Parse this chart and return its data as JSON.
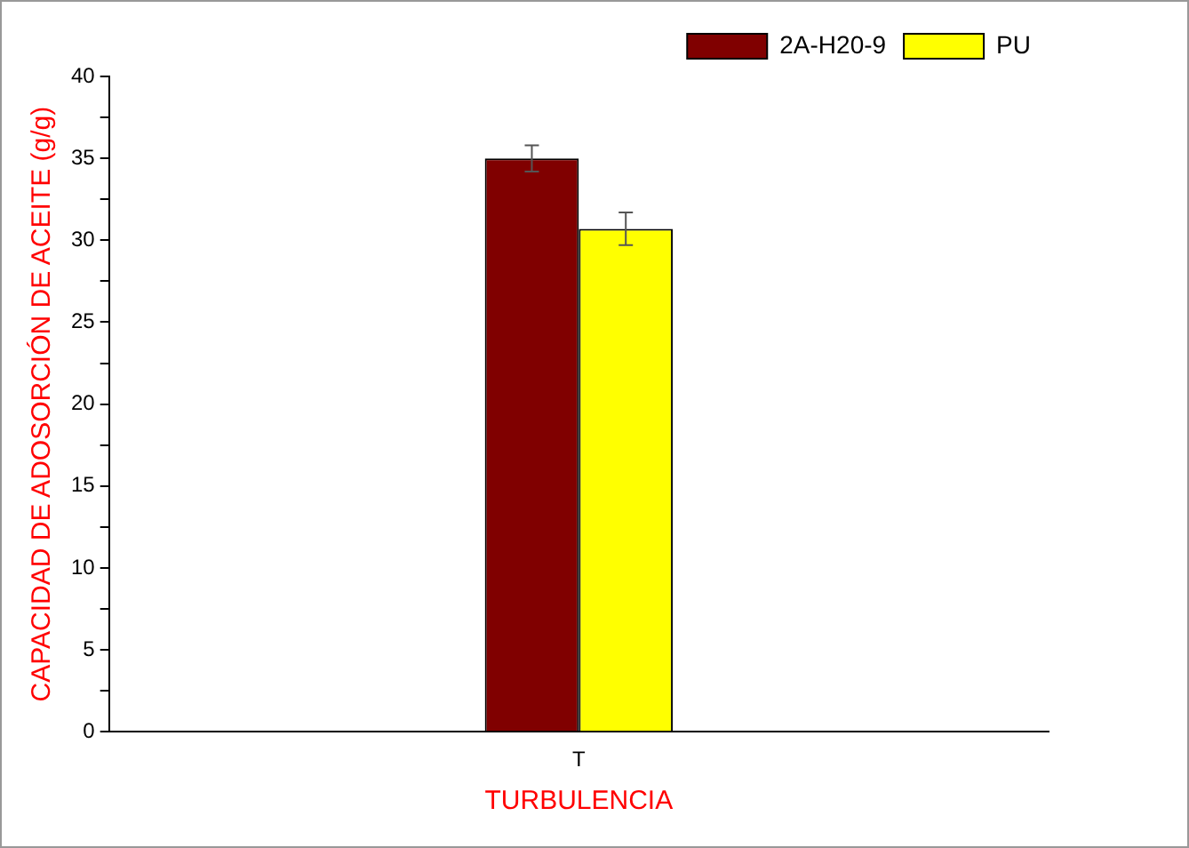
{
  "chart_data": {
    "type": "bar",
    "xlabel": "TURBULENCIA",
    "ylabel": "CAPACIDAD DE ADOSORCIÓN DE ACEITE (g/g)",
    "categories": [
      "T"
    ],
    "series": [
      {
        "name": "2A-H20-9",
        "color": "#800000",
        "values": [
          35.0
        ],
        "errors": [
          0.8
        ]
      },
      {
        "name": "PU",
        "color": "#ffff00",
        "values": [
          30.7
        ],
        "errors": [
          1.0
        ]
      }
    ],
    "ylim": [
      0,
      40
    ],
    "yticks": [
      0,
      {
        "value": 2.5,
        "label": null
      },
      5,
      {
        "value": 7.5,
        "label": null
      },
      10,
      {
        "value": 12.5,
        "label": null
      },
      15,
      {
        "value": 17.5,
        "label": null
      },
      20,
      {
        "value": 22.5,
        "label": null
      },
      25,
      {
        "value": 27.5,
        "label": null
      },
      30,
      {
        "value": 32.5,
        "label": null
      },
      35,
      {
        "value": 37.5,
        "label": null
      },
      40
    ],
    "grid": false,
    "legend": "top right"
  }
}
